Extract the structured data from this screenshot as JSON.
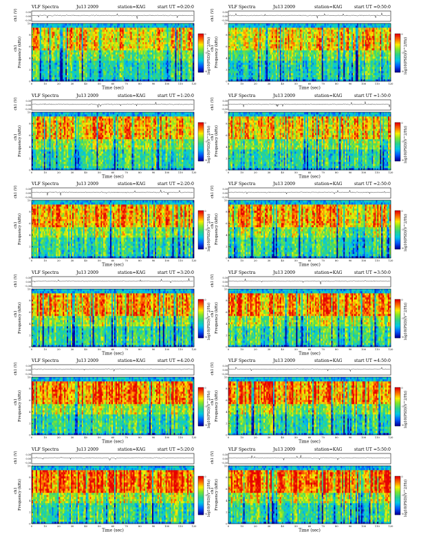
{
  "chart_data": [
    {
      "type": "heatmap",
      "title": "VLF Spectra",
      "date": "Ju13 2009",
      "station": "station=KAG",
      "start": "start  UT =0:20:0",
      "ch1_label": "ch1 (V)",
      "ch1_ticks": [
        "0.30",
        "0.00",
        "-0.30"
      ],
      "ylabel": "Frequency (kHz)",
      "y_prefix": "ch1",
      "xlabel": "Time (sec)",
      "xlim": [
        0,
        120
      ],
      "ylim": [
        0,
        10
      ],
      "x_ticks": [
        "0",
        "10",
        "20",
        "30",
        "40",
        "50",
        "60",
        "70",
        "80",
        "90",
        "100",
        "110",
        "120"
      ],
      "y_ticks": [
        "0",
        "2",
        "4",
        "6",
        "8",
        "10"
      ],
      "cbar_label": "log10(PSD)(V^2/Hz)",
      "cbar_ticks": [
        "0",
        "-3",
        "-6"
      ],
      "intensity": 0.55
    },
    {
      "type": "heatmap",
      "title": "VLF Spectra",
      "date": "Ju13 2009",
      "station": "station=KAG",
      "start": "start  UT =0:50:0",
      "ch1_label": "ch1 (V)",
      "ch1_ticks": [
        "0.30",
        "0.00",
        "-0.30"
      ],
      "ylabel": "Frequency (kHz)",
      "y_prefix": "ch1",
      "xlabel": "Time (sec)",
      "xlim": [
        0,
        120
      ],
      "ylim": [
        0,
        10
      ],
      "x_ticks": [
        "0",
        "10",
        "20",
        "30",
        "40",
        "50",
        "60",
        "70",
        "80",
        "90",
        "100",
        "110",
        "120"
      ],
      "y_ticks": [
        "0",
        "2",
        "4",
        "6",
        "8",
        "10"
      ],
      "cbar_label": "log10(PSD)(V^2/Hz)",
      "cbar_ticks": [
        "0",
        "-3",
        "-6"
      ],
      "intensity": 0.55
    },
    {
      "type": "heatmap",
      "title": "VLF Spectra",
      "date": "Ju13 2009",
      "station": "station=KAG",
      "start": "start  UT =1:20:0",
      "ch1_label": "ch1 (V)",
      "ch1_ticks": [
        "0.30",
        "0.00",
        "-0.30"
      ],
      "ylabel": "Frequency (kHz)",
      "y_prefix": "ch1",
      "xlabel": "Time (sec)",
      "xlim": [
        0,
        120
      ],
      "ylim": [
        0,
        10
      ],
      "x_ticks": [
        "0",
        "10",
        "20",
        "30",
        "40",
        "50",
        "60",
        "70",
        "80",
        "90",
        "100",
        "110",
        "120"
      ],
      "y_ticks": [
        "0",
        "2",
        "4",
        "6",
        "8",
        "10"
      ],
      "cbar_label": "log10(PSD)(V^2/Hz)",
      "cbar_ticks": [
        "0",
        "-3",
        "-6"
      ],
      "intensity": 0.6
    },
    {
      "type": "heatmap",
      "title": "VLF Spectra",
      "date": "Ju13 2009",
      "station": "station=KAG",
      "start": "start  UT =1:50:0",
      "ch1_label": "ch1 (V)",
      "ch1_ticks": [
        "0.30",
        "0.00",
        "-0.30"
      ],
      "ylabel": "Frequency (kHz)",
      "y_prefix": "ch1",
      "xlabel": "Time (sec)",
      "xlim": [
        0,
        120
      ],
      "ylim": [
        0,
        10
      ],
      "x_ticks": [
        "0",
        "10",
        "20",
        "30",
        "40",
        "50",
        "60",
        "70",
        "80",
        "90",
        "100",
        "110",
        "120"
      ],
      "y_ticks": [
        "0",
        "2",
        "4",
        "6",
        "8",
        "10"
      ],
      "cbar_label": "log10(PSD)(V^2/Hz)",
      "cbar_ticks": [
        "0",
        "-3",
        "-6"
      ],
      "intensity": 0.6
    },
    {
      "type": "heatmap",
      "title": "VLF Spectra",
      "date": "Ju13 2009",
      "station": "station=KAG",
      "start": "start  UT =2:20:0",
      "ch1_label": "ch1 (V)",
      "ch1_ticks": [
        "0.30",
        "0.00",
        "-0.30"
      ],
      "ylabel": "Frequency (kHz)",
      "y_prefix": "ch1",
      "xlabel": "Time (sec)",
      "xlim": [
        0,
        120
      ],
      "ylim": [
        0,
        10
      ],
      "x_ticks": [
        "0",
        "10",
        "20",
        "30",
        "40",
        "50",
        "60",
        "70",
        "80",
        "90",
        "100",
        "110",
        "120"
      ],
      "y_ticks": [
        "0",
        "2",
        "4",
        "6",
        "8",
        "10"
      ],
      "cbar_label": "log10(PSD)(V^2/Hz)",
      "cbar_ticks": [
        "0",
        "-3",
        "-6"
      ],
      "intensity": 0.68
    },
    {
      "type": "heatmap",
      "title": "VLF Spectra",
      "date": "Ju13 2009",
      "station": "station=KAG",
      "start": "start  UT =2:50:0",
      "ch1_label": "ch1 (V)",
      "ch1_ticks": [
        "0.30",
        "0.00",
        "-0.30"
      ],
      "ylabel": "Frequency (kHz)",
      "y_prefix": "ch1",
      "xlabel": "Time (sec)",
      "xlim": [
        0,
        120
      ],
      "ylim": [
        0,
        10
      ],
      "x_ticks": [
        "0",
        "10",
        "20",
        "30",
        "40",
        "50",
        "60",
        "70",
        "80",
        "90",
        "100",
        "110",
        "120"
      ],
      "y_ticks": [
        "0",
        "2",
        "4",
        "6",
        "8",
        "10"
      ],
      "cbar_label": "log10(PSD)(V^2/Hz)",
      "cbar_ticks": [
        "0",
        "-3",
        "-6"
      ],
      "intensity": 0.66
    },
    {
      "type": "heatmap",
      "title": "VLF Spectra",
      "date": "Ju13 2009",
      "station": "station=KAG",
      "start": "start  UT =3:20:0",
      "ch1_label": "ch1 (V)",
      "ch1_ticks": [
        "0.30",
        "0.00",
        "-0.30"
      ],
      "ylabel": "Frequency (kHz)",
      "y_prefix": "ch1",
      "xlabel": "Time (sec)",
      "xlim": [
        0,
        120
      ],
      "ylim": [
        0,
        10
      ],
      "x_ticks": [
        "0",
        "10",
        "20",
        "30",
        "40",
        "50",
        "60",
        "70",
        "80",
        "90",
        "100",
        "110",
        "120"
      ],
      "y_ticks": [
        "0",
        "2",
        "4",
        "6",
        "8",
        "10"
      ],
      "cbar_label": "log10(PSD)(V^2/Hz)",
      "cbar_ticks": [
        "0",
        "-3",
        "-6"
      ],
      "intensity": 0.72
    },
    {
      "type": "heatmap",
      "title": "VLF Spectra",
      "date": "Ju13 2009",
      "station": "station=KAG",
      "start": "start  UT =3:50:0",
      "ch1_label": "ch1 (V)",
      "ch1_ticks": [
        "0.30",
        "0.00",
        "-0.30"
      ],
      "ylabel": "Frequency (kHz)",
      "y_prefix": "ch1",
      "xlabel": "Time (sec)",
      "xlim": [
        0,
        120
      ],
      "ylim": [
        0,
        10
      ],
      "x_ticks": [
        "0",
        "10",
        "20",
        "30",
        "40",
        "50",
        "60",
        "70",
        "80",
        "90",
        "100",
        "110",
        "120"
      ],
      "y_ticks": [
        "0",
        "2",
        "4",
        "6",
        "8",
        "10"
      ],
      "cbar_label": "log10(PSD)(V^2/Hz)",
      "cbar_ticks": [
        "0",
        "-3",
        "-6"
      ],
      "intensity": 0.72
    },
    {
      "type": "heatmap",
      "title": "VLF Spectra",
      "date": "Ju13 2009",
      "station": "station=KAG",
      "start": "start  UT =4:20:0",
      "ch1_label": "ch1 (V)",
      "ch1_ticks": [
        "0.30",
        "0.00",
        "-0.30"
      ],
      "ylabel": "Frequency (kHz)",
      "y_prefix": "ch1",
      "xlabel": "Time (sec)",
      "xlim": [
        0,
        120
      ],
      "ylim": [
        0,
        10
      ],
      "x_ticks": [
        "0",
        "10",
        "20",
        "30",
        "40",
        "50",
        "60",
        "70",
        "80",
        "90",
        "100",
        "110",
        "120"
      ],
      "y_ticks": [
        "0",
        "2",
        "4",
        "6",
        "8",
        "10"
      ],
      "cbar_label": "log10(PSD)(V^2/Hz)",
      "cbar_ticks": [
        "0",
        "-3",
        "-6"
      ],
      "intensity": 0.8
    },
    {
      "type": "heatmap",
      "title": "VLF Spectra",
      "date": "Ju13 2009",
      "station": "station=KAG",
      "start": "start  UT =4:50:0",
      "ch1_label": "ch1 (V)",
      "ch1_ticks": [
        "0.30",
        "0.00",
        "-0.30"
      ],
      "ylabel": "Frequency (kHz)",
      "y_prefix": "ch1",
      "xlabel": "Time (sec)",
      "xlim": [
        0,
        120
      ],
      "ylim": [
        0,
        10
      ],
      "x_ticks": [
        "0",
        "10",
        "20",
        "30",
        "40",
        "50",
        "60",
        "70",
        "80",
        "90",
        "100",
        "110",
        "120"
      ],
      "y_ticks": [
        "0",
        "2",
        "4",
        "6",
        "8",
        "10"
      ],
      "cbar_label": "log10(PSD)(V^2/Hz)",
      "cbar_ticks": [
        "0",
        "-3",
        "-6"
      ],
      "intensity": 0.8
    },
    {
      "type": "heatmap",
      "title": "VLF Spectra",
      "date": "Ju13 2009",
      "station": "station=KAG",
      "start": "start  UT =5:20:0",
      "ch1_label": "ch1 (V)",
      "ch1_ticks": [
        "0.30",
        "0.00",
        "-0.30"
      ],
      "ylabel": "Frequency (kHz)",
      "y_prefix": "ch1",
      "xlabel": "Time (sec)",
      "xlim": [
        0,
        120
      ],
      "ylim": [
        0,
        10
      ],
      "x_ticks": [
        "0",
        "10",
        "20",
        "30",
        "40",
        "50",
        "60",
        "70",
        "80",
        "90",
        "100",
        "110",
        "120"
      ],
      "y_ticks": [
        "0",
        "2",
        "4",
        "6",
        "8",
        "10"
      ],
      "cbar_label": "log10(PSD)(V^2/Hz)",
      "cbar_ticks": [
        "0",
        "-3",
        "-6"
      ],
      "intensity": 0.88
    },
    {
      "type": "heatmap",
      "title": "VLF Spectra",
      "date": "Ju13 2009",
      "station": "station=KAG",
      "start": "start  UT =5:50:0",
      "ch1_label": "ch1 (V)",
      "ch1_ticks": [
        "0.30",
        "0.00",
        "-0.30"
      ],
      "ylabel": "Frequency (kHz)",
      "y_prefix": "ch1",
      "xlabel": "Time (sec)",
      "xlim": [
        0,
        120
      ],
      "ylim": [
        0,
        10
      ],
      "x_ticks": [
        "0",
        "10",
        "20",
        "30",
        "40",
        "50",
        "60",
        "70",
        "80",
        "90",
        "100",
        "110",
        "120"
      ],
      "y_ticks": [
        "0",
        "2",
        "4",
        "6",
        "8",
        "10"
      ],
      "cbar_label": "log10(PSD)(V^2/Hz)",
      "cbar_ticks": [
        "0",
        "-3",
        "-6"
      ],
      "intensity": 0.88
    }
  ]
}
